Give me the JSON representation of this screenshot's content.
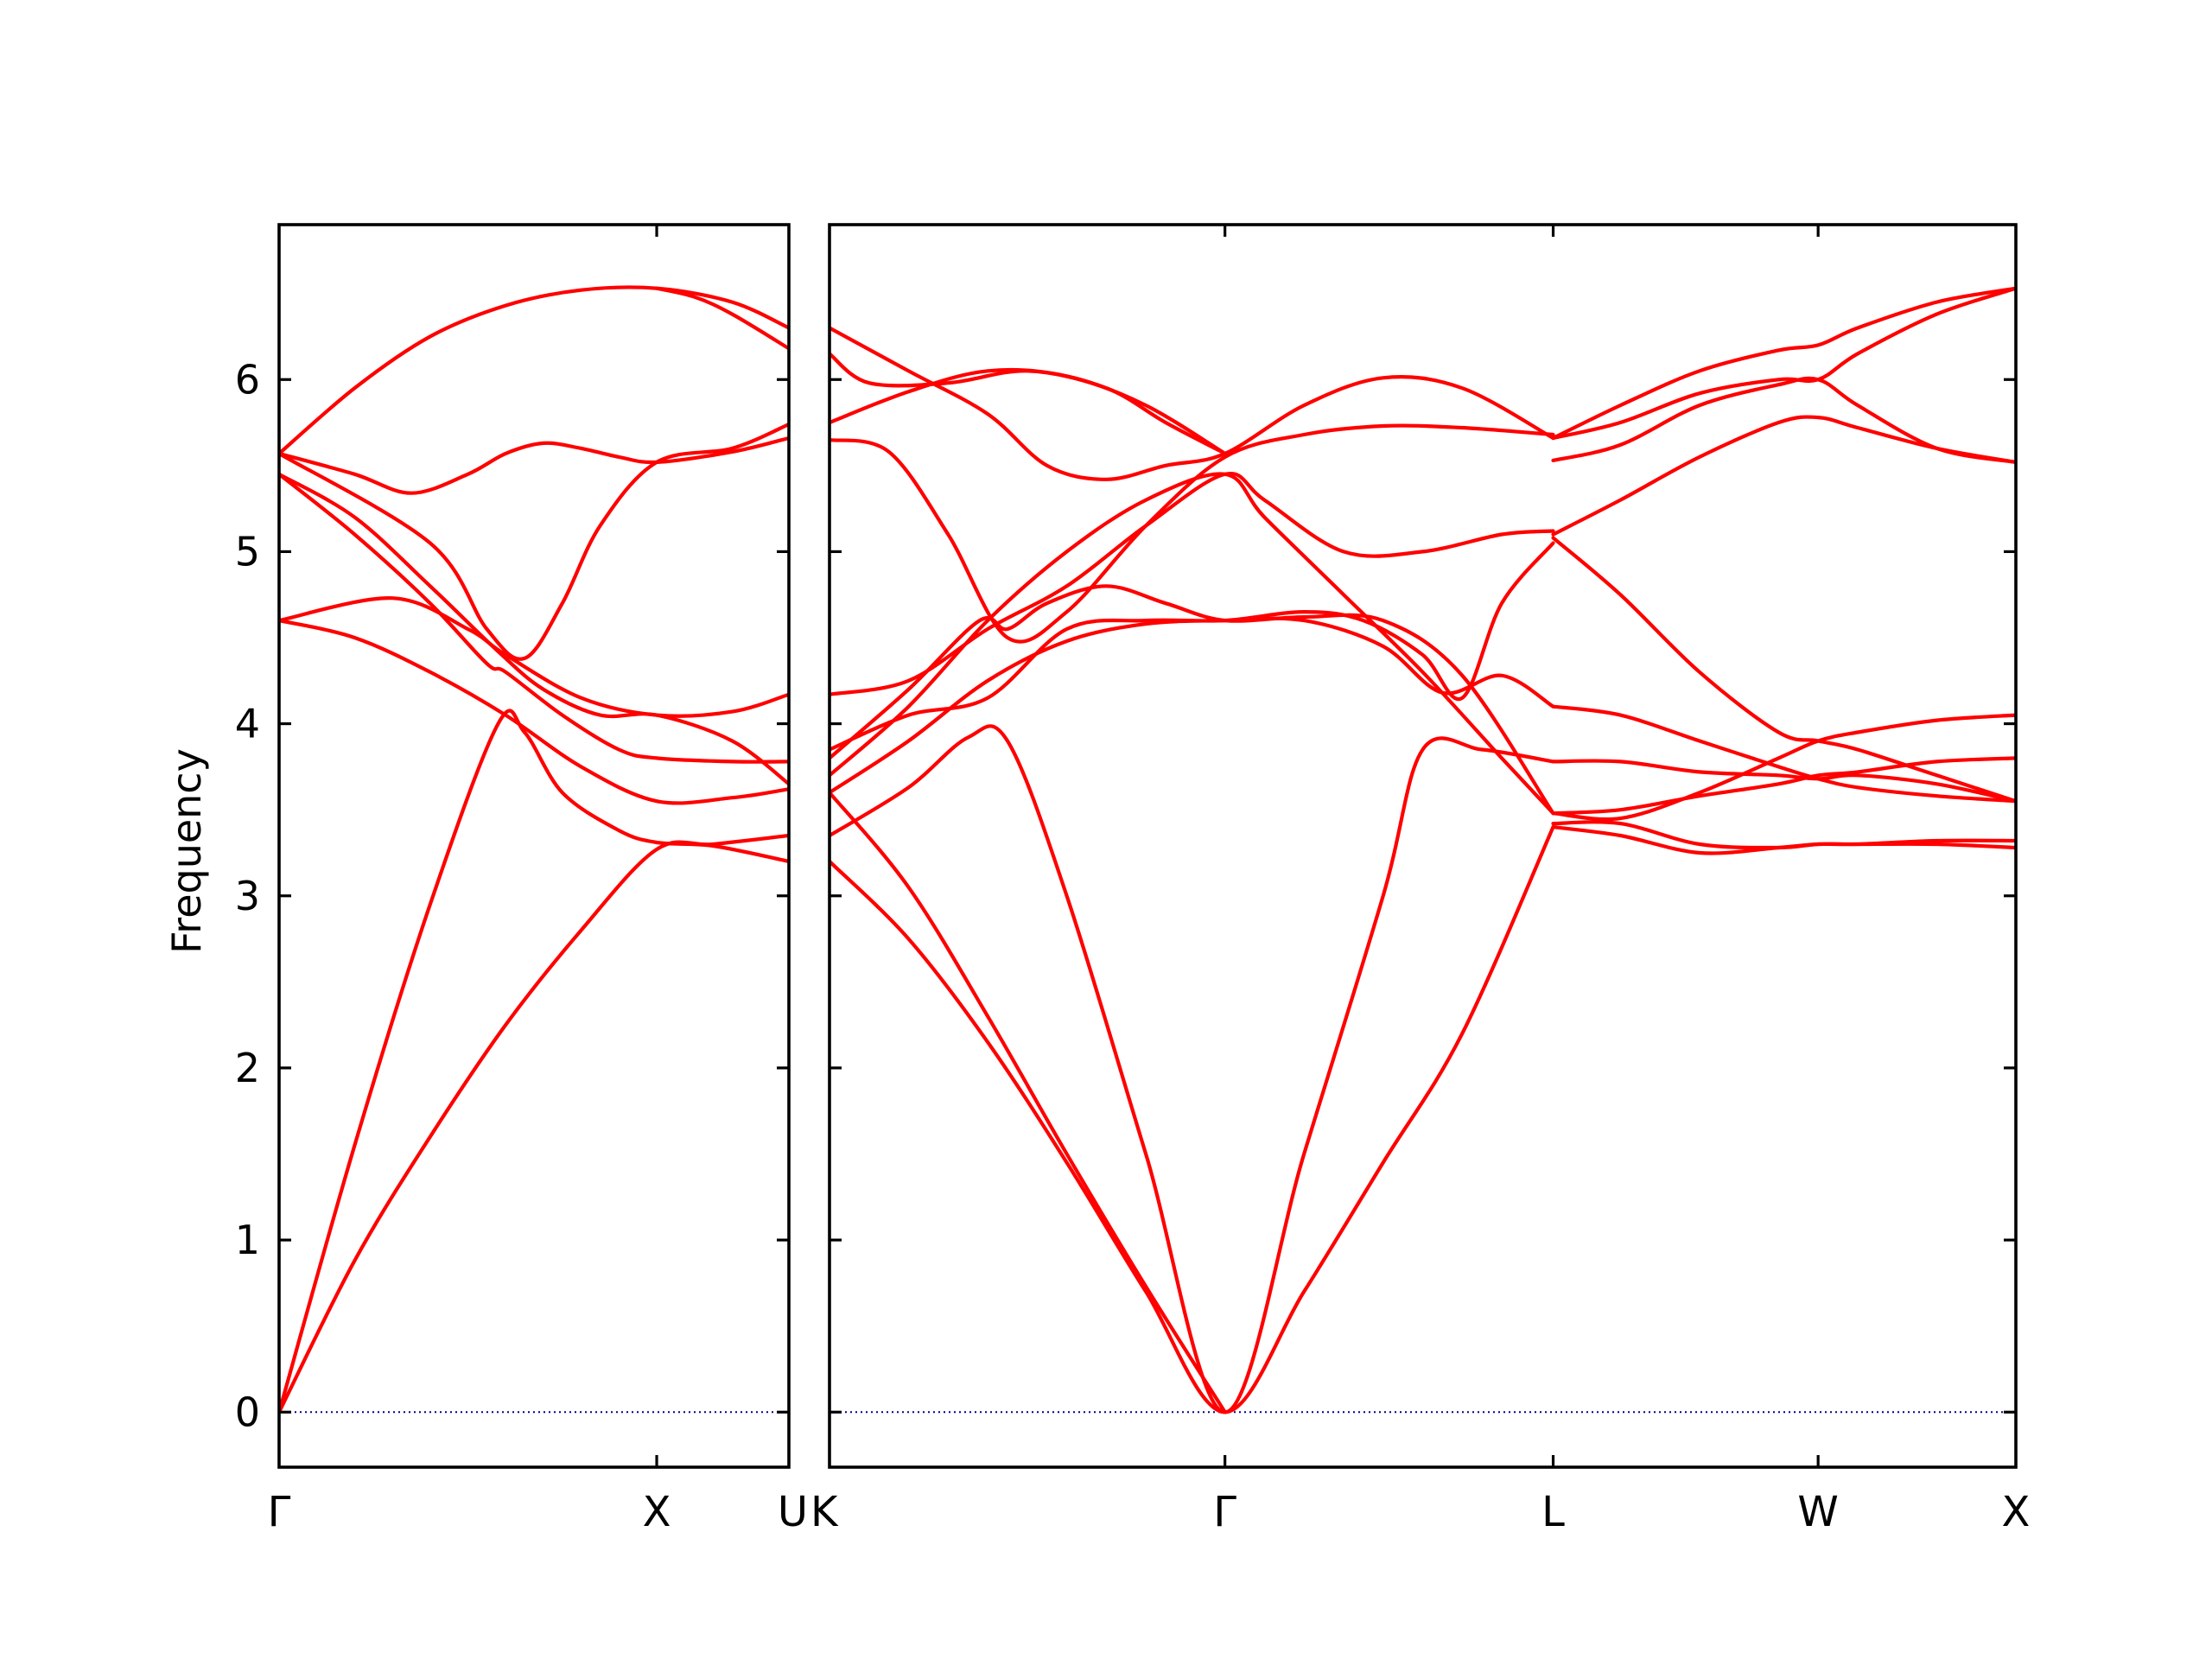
{
  "chart_data": {
    "type": "line",
    "ylabel": "Frequency",
    "ylim": [
      -0.32,
      6.9
    ],
    "yticks": [
      "0",
      "1",
      "2",
      "3",
      "4",
      "5",
      "6"
    ],
    "line_color": "#ff0000",
    "zero_line_color": "#00008b",
    "grid": false,
    "panels": [
      {
        "name": "left",
        "xlim": [
          0,
          1.35
        ],
        "xticks": [
          {
            "x": 0,
            "label": "Γ"
          },
          {
            "x": 1.0,
            "label": "X"
          },
          {
            "x": 1.35,
            "label": "U"
          }
        ],
        "bands": [
          {
            "x": [
              0,
              0.2,
              0.4,
              0.6,
              0.8,
              1.0,
              1.15,
              1.35
            ],
            "y": [
              0,
              0.88,
              1.6,
              2.25,
              2.8,
              3.27,
              3.3,
              3.35
            ]
          },
          {
            "x": [
              0,
              0.2,
              0.4,
              0.58,
              0.65,
              0.75,
              0.9,
              1.0,
              1.15,
              1.35
            ],
            "y": [
              0,
              1.55,
              2.95,
              4.0,
              3.95,
              3.6,
              3.38,
              3.31,
              3.29,
              3.2
            ]
          },
          {
            "x": [
              0,
              0.2,
              0.4,
              0.6,
              0.8,
              1.0,
              1.2,
              1.35
            ],
            "y": [
              4.6,
              4.5,
              4.3,
              4.05,
              3.75,
              3.55,
              3.57,
              3.62
            ]
          },
          {
            "x": [
              0,
              0.3,
              0.5,
              0.6,
              0.8,
              1.0,
              1.2,
              1.35
            ],
            "y": [
              4.6,
              4.73,
              4.55,
              4.4,
              4.15,
              4.05,
              4.07,
              4.17
            ]
          },
          {
            "x": [
              0,
              0.2,
              0.4,
              0.55,
              0.6,
              0.75,
              0.9,
              1.0,
              1.2,
              1.35
            ],
            "y": [
              5.45,
              5.1,
              4.7,
              4.35,
              4.3,
              4.05,
              3.85,
              3.8,
              3.78,
              3.78
            ]
          },
          {
            "x": [
              0,
              0.2,
              0.4,
              0.58,
              0.7,
              0.85,
              1.0,
              1.2,
              1.35
            ],
            "y": [
              5.45,
              5.2,
              4.8,
              4.42,
              4.2,
              4.05,
              4.05,
              3.9,
              3.65
            ]
          },
          {
            "x": [
              0,
              0.2,
              0.35,
              0.5,
              0.6,
              0.7,
              0.8,
              0.9,
              1.0,
              1.2,
              1.35
            ],
            "y": [
              5.57,
              5.45,
              5.34,
              5.45,
              5.57,
              5.63,
              5.6,
              5.55,
              5.52,
              5.58,
              5.66
            ]
          },
          {
            "x": [
              0,
              0.4,
              0.55,
              0.65,
              0.75,
              0.85,
              1.0,
              1.2,
              1.35
            ],
            "y": [
              5.57,
              5.05,
              4.55,
              4.38,
              4.7,
              5.15,
              5.52,
              5.6,
              5.74
            ]
          },
          {
            "x": [
              0,
              0.2,
              0.4,
              0.6,
              0.8,
              1.0,
              1.2,
              1.35
            ],
            "y": [
              5.57,
              5.95,
              6.25,
              6.43,
              6.52,
              6.53,
              6.45,
              6.3
            ]
          },
          {
            "x": [
              1.0,
              1.1,
              1.2,
              1.35
            ],
            "y": [
              6.53,
              6.48,
              6.38,
              6.18
            ]
          }
        ]
      },
      {
        "name": "right",
        "xlim": [
          0,
          3.0
        ],
        "xticks": [
          {
            "x": 0,
            "label": "K"
          },
          {
            "x": 1.0,
            "label": "Γ"
          },
          {
            "x": 1.83,
            "label": "L"
          },
          {
            "x": 2.5,
            "label": "W"
          },
          {
            "x": 3.0,
            "label": "X"
          }
        ],
        "bands": [
          {
            "x": [
              0,
              0.2,
              0.4,
              0.6,
              0.8,
              1.0,
              1.2,
              1.4,
              1.6,
              1.83
            ],
            "y": [
              3.2,
              2.75,
              2.15,
              1.45,
              0.7,
              0,
              0.7,
              1.45,
              2.2,
              3.4
            ]
          },
          {
            "x": [
              0,
              0.2,
              0.4,
              0.6,
              0.8,
              1.0
            ],
            "y": [
              3.6,
              3.05,
              2.3,
              1.5,
              0.73,
              0
            ]
          },
          {
            "x": [
              0,
              0.2,
              0.35,
              0.45,
              0.6,
              0.8,
              1.0,
              1.2,
              1.4,
              1.5,
              1.65,
              1.83
            ],
            "y": [
              3.35,
              3.63,
              3.92,
              3.9,
              3.0,
              1.5,
              0,
              1.5,
              3.0,
              3.85,
              3.85,
              3.78
            ]
          },
          {
            "x": [
              0,
              0.2,
              0.4,
              0.6,
              0.8,
              1.0,
              1.2,
              1.4,
              1.55,
              1.7,
              1.83
            ],
            "y": [
              3.6,
              3.9,
              4.25,
              4.48,
              4.58,
              4.6,
              4.6,
              4.45,
              4.18,
              4.28,
              4.1
            ]
          },
          {
            "x": [
              0,
              0.2,
              0.4,
              0.6,
              0.8,
              1.0,
              1.2,
              1.35,
              1.5,
              1.6,
              1.7,
              1.83
            ],
            "y": [
              3.85,
              4.05,
              4.15,
              4.55,
              4.6,
              4.6,
              4.65,
              4.6,
              4.4,
              4.15,
              4.7,
              5.05
            ]
          },
          {
            "x": [
              0,
              0.2,
              0.38,
              0.45,
              0.55,
              0.7,
              0.85,
              1.0,
              1.2,
              1.4,
              1.6,
              1.83
            ],
            "y": [
              3.8,
              4.2,
              4.6,
              4.55,
              4.7,
              4.8,
              4.7,
              4.6,
              4.62,
              4.6,
              4.28,
              3.48
            ]
          },
          {
            "x": [
              0,
              0.2,
              0.4,
              0.6,
              0.8,
              1.0,
              1.1,
              1.3,
              1.5,
              1.7,
              1.83
            ],
            "y": [
              4.17,
              4.25,
              4.55,
              4.8,
              5.15,
              5.45,
              5.3,
              5.0,
              5.0,
              5.1,
              5.12
            ]
          },
          {
            "x": [
              0,
              0.2,
              0.4,
              0.6,
              0.8,
              1.0,
              1.1,
              1.3,
              1.5,
              1.7,
              1.83
            ],
            "y": [
              3.7,
              4.1,
              4.6,
              5.0,
              5.3,
              5.45,
              5.2,
              4.75,
              4.3,
              3.8,
              3.48
            ]
          },
          {
            "x": [
              0,
              0.15,
              0.3,
              0.45,
              0.6,
              0.8,
              1.0,
              1.2,
              1.4,
              1.6,
              1.83
            ],
            "y": [
              5.65,
              5.58,
              5.1,
              4.5,
              4.65,
              5.15,
              5.55,
              5.68,
              5.73,
              5.72,
              5.68
            ]
          },
          {
            "x": [
              0,
              0.2,
              0.4,
              0.55,
              0.7,
              0.85,
              1.0,
              1.2,
              1.4,
              1.6,
              1.83
            ],
            "y": [
              6.3,
              6.05,
              5.8,
              5.5,
              5.42,
              5.5,
              5.57,
              5.85,
              6.01,
              5.95,
              5.66
            ]
          },
          {
            "x": [
              0,
              0.1,
              0.3,
              0.5,
              0.7,
              0.85,
              1.0
            ],
            "y": [
              6.15,
              5.98,
              5.98,
              6.05,
              5.95,
              5.75,
              5.57
            ]
          },
          {
            "x": [
              0,
              0.2,
              0.4,
              0.6,
              0.8,
              1.0
            ],
            "y": [
              5.75,
              5.93,
              6.05,
              6.02,
              5.85,
              5.57
            ]
          },
          {
            "x": [
              1.83,
              2.0,
              2.2,
              2.4,
              2.5,
              2.6,
              2.8,
              3.0
            ],
            "y": [
              3.4,
              3.35,
              3.25,
              3.28,
              3.3,
              3.3,
              3.32,
              3.32
            ]
          },
          {
            "x": [
              1.83,
              2.0,
              2.2,
              2.4,
              2.5,
              2.6,
              2.8,
              3.0
            ],
            "y": [
              3.42,
              3.42,
              3.3,
              3.28,
              3.3,
              3.3,
              3.3,
              3.28
            ]
          },
          {
            "x": [
              1.83,
              2.0,
              2.2,
              2.4,
              2.5,
              2.6,
              2.8,
              3.0
            ],
            "y": [
              3.48,
              3.5,
              3.58,
              3.65,
              3.7,
              3.72,
              3.78,
              3.8
            ]
          },
          {
            "x": [
              1.83,
              2.0,
              2.2,
              2.4,
              2.5,
              2.6,
              2.8,
              3.0
            ],
            "y": [
              3.48,
              3.45,
              3.6,
              3.8,
              3.9,
              3.95,
              4.02,
              4.05
            ]
          },
          {
            "x": [
              1.83,
              2.0,
              2.2,
              2.4,
              2.5,
              2.6,
              2.8,
              3.0
            ],
            "y": [
              3.78,
              3.78,
              3.72,
              3.7,
              3.68,
              3.7,
              3.65,
              3.55
            ]
          },
          {
            "x": [
              1.83,
              2.0,
              2.2,
              2.4,
              2.5,
              2.6,
              2.8,
              3.0
            ],
            "y": [
              4.1,
              4.05,
              3.9,
              3.75,
              3.68,
              3.63,
              3.58,
              3.55
            ]
          },
          {
            "x": [
              1.83,
              2.0,
              2.2,
              2.4,
              2.5,
              2.6,
              2.8,
              3.0
            ],
            "y": [
              5.08,
              4.75,
              4.3,
              3.95,
              3.9,
              3.85,
              3.7,
              3.55
            ]
          },
          {
            "x": [
              1.83,
              2.0,
              2.2,
              2.4,
              2.5,
              2.6,
              2.8,
              3.0
            ],
            "y": [
              5.1,
              5.3,
              5.55,
              5.75,
              5.78,
              5.72,
              5.6,
              5.52
            ]
          },
          {
            "x": [
              1.83,
              2.0,
              2.2,
              2.4,
              2.5,
              2.6,
              2.8,
              3.0
            ],
            "y": [
              5.53,
              5.62,
              5.85,
              5.97,
              6.0,
              5.85,
              5.6,
              5.52
            ]
          },
          {
            "x": [
              1.83,
              2.0,
              2.2,
              2.4,
              2.5,
              2.6,
              2.8,
              3.0
            ],
            "y": [
              5.66,
              5.75,
              5.92,
              6.0,
              6.0,
              6.15,
              6.38,
              6.53
            ]
          },
          {
            "x": [
              1.83,
              2.0,
              2.2,
              2.4,
              2.5,
              2.6,
              2.8,
              3.0
            ],
            "y": [
              5.66,
              5.85,
              6.05,
              6.17,
              6.2,
              6.3,
              6.45,
              6.53
            ]
          }
        ]
      }
    ]
  }
}
